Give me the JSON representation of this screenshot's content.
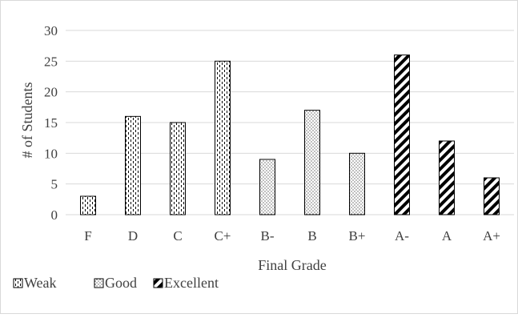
{
  "chart_data": {
    "type": "bar",
    "title": "",
    "xlabel": "Final Grade",
    "ylabel": "# of Students",
    "categories": [
      "F",
      "D",
      "C",
      "C+",
      "B-",
      "B",
      "B+",
      "A-",
      "A",
      "A+"
    ],
    "values": [
      3,
      16,
      15,
      25,
      9,
      17,
      10,
      26,
      12,
      6
    ],
    "bar_group": [
      "Weak",
      "Weak",
      "Weak",
      "Weak",
      "Good",
      "Good",
      "Good",
      "Excellent",
      "Excellent",
      "Excellent"
    ],
    "ylim": [
      0,
      30
    ],
    "yticks": [
      0,
      5,
      10,
      15,
      20,
      25,
      30
    ],
    "grid": true,
    "legend_position": "bottom-left",
    "legend": [
      {
        "name": "Weak",
        "pattern": "vertical-dashes"
      },
      {
        "name": "Good",
        "pattern": "dots"
      },
      {
        "name": "Excellent",
        "pattern": "diagonal-stripes"
      }
    ],
    "colors": {
      "bar_stroke": "#000000",
      "grid": "#d9d9d9",
      "text": "#404040"
    }
  }
}
